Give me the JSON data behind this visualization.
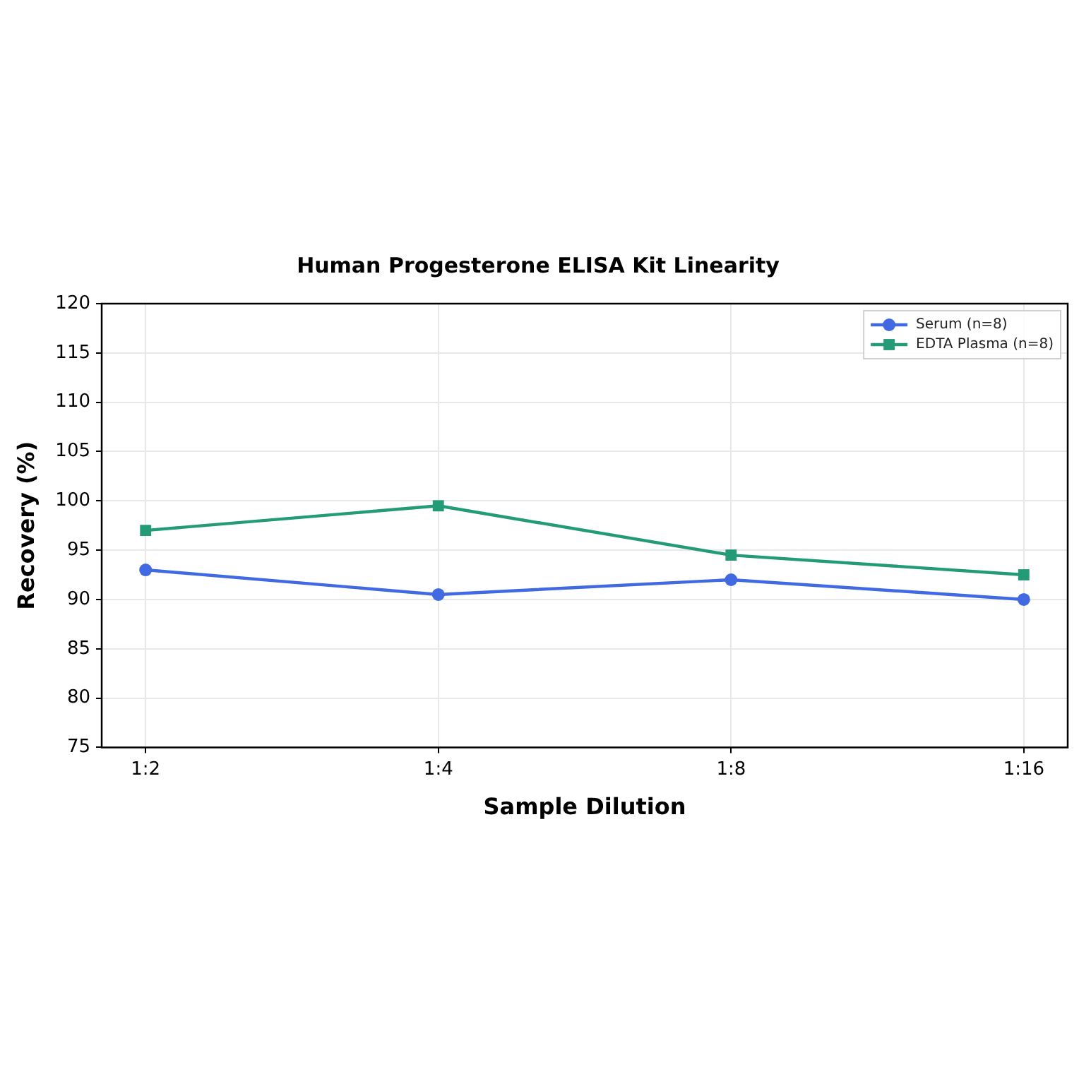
{
  "chart_data": {
    "type": "line",
    "title": "Human Progesterone ELISA Kit Linearity",
    "xlabel": "Sample Dilution",
    "ylabel": "Recovery (%)",
    "categories": [
      "1:2",
      "1:4",
      "1:8",
      "1:16"
    ],
    "series": [
      {
        "name": "Serum (n=8)",
        "color": "#4169e1",
        "marker": "circle",
        "values": [
          93,
          90.5,
          92,
          90
        ]
      },
      {
        "name": "EDTA Plasma (n=8)",
        "color": "#239b77",
        "marker": "square",
        "values": [
          97,
          99.5,
          94.5,
          92.5
        ]
      }
    ],
    "ylim": [
      75,
      120
    ],
    "yticks": [
      75,
      80,
      85,
      90,
      95,
      100,
      105,
      110,
      115,
      120
    ],
    "grid": true,
    "legend": "top right",
    "line_style": "solid"
  }
}
